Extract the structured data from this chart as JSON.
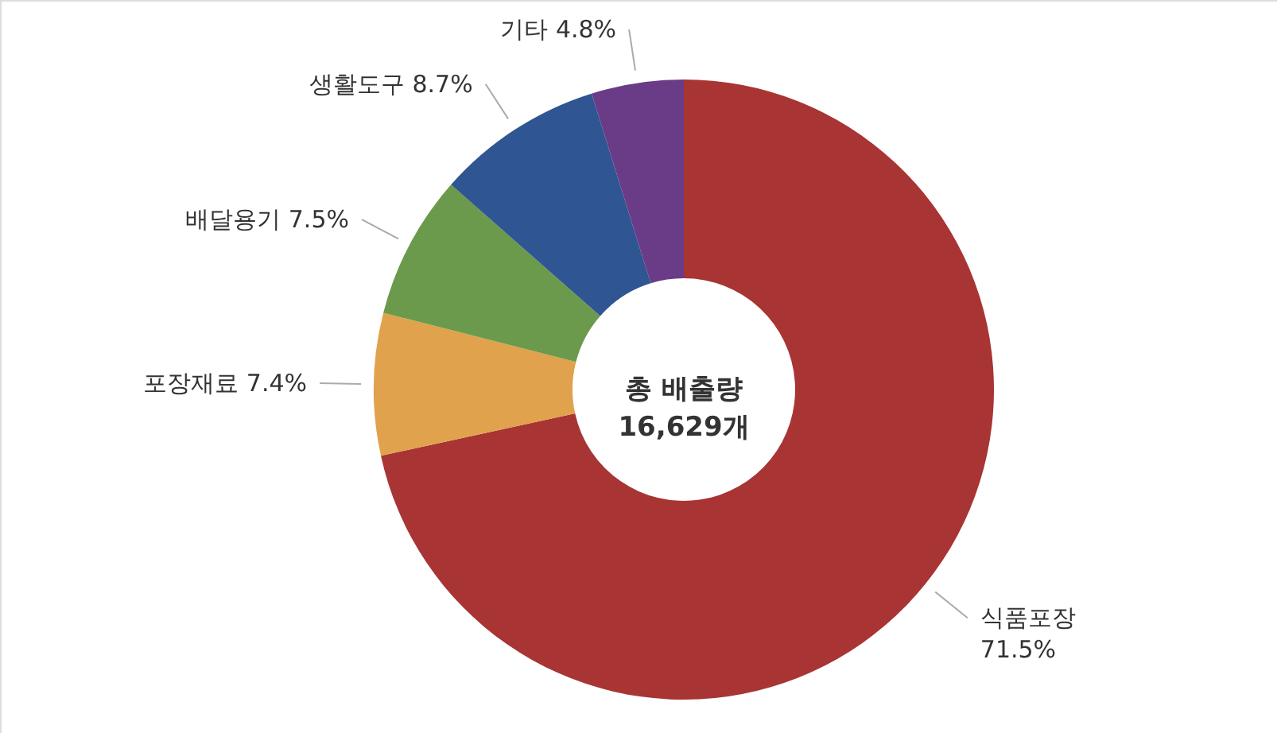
{
  "chart_data": {
    "type": "donut",
    "categories": [
      "식품포장",
      "포장재료",
      "배달용기",
      "생활도구",
      "기타"
    ],
    "values": [
      71.5,
      7.4,
      7.5,
      8.7,
      4.8
    ],
    "value_labels": [
      "71.5%",
      "7.4%",
      "7.5%",
      "8.7%",
      "4.8%"
    ],
    "colors": [
      "#a83434",
      "#e0a24c",
      "#6b9a4c",
      "#2f5592",
      "#6a3c88"
    ],
    "annotations": [
      "총 배출량\n16,629개"
    ]
  }
}
